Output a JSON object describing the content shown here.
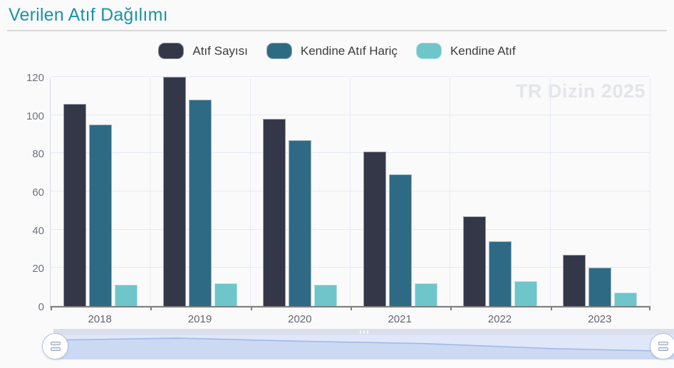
{
  "header": {
    "title": "Verilen Atıf Dağılımı"
  },
  "watermark": "TR Dizin 2025",
  "chart_data": {
    "type": "bar",
    "title": "Verilen Atıf Dağılımı",
    "categories": [
      "2018",
      "2019",
      "2020",
      "2021",
      "2022",
      "2023"
    ],
    "series": [
      {
        "name": "Atıf Sayısı",
        "color": "#343747",
        "values": [
          106,
          120,
          98,
          81,
          47,
          27
        ]
      },
      {
        "name": "Kendine Atıf Hariç",
        "color": "#2f6a85",
        "values": [
          95,
          108,
          87,
          69,
          34,
          20
        ]
      },
      {
        "name": "Kendine Atıf",
        "color": "#6ec5ca",
        "values": [
          11,
          12,
          11,
          12,
          13,
          7
        ]
      }
    ],
    "xlabel": "",
    "ylabel": "",
    "ylim": [
      0,
      120
    ],
    "yticks": [
      0,
      20,
      40,
      60,
      80,
      100,
      120
    ],
    "grid": true,
    "legend_position": "top-center"
  },
  "navigator": {
    "series_values": [
      106,
      120,
      98,
      81,
      47,
      27
    ],
    "range": [
      0,
      120
    ]
  },
  "colors": {
    "title": "#1b93a9",
    "watermark": "#e3e5ea",
    "gridline": "#e7eaf4",
    "axis_line": "#7e7e7e",
    "navigator_band": "#dfe7f8",
    "navigator_area": "#ccd9f3",
    "navigator_line": "#9fb6e6"
  }
}
